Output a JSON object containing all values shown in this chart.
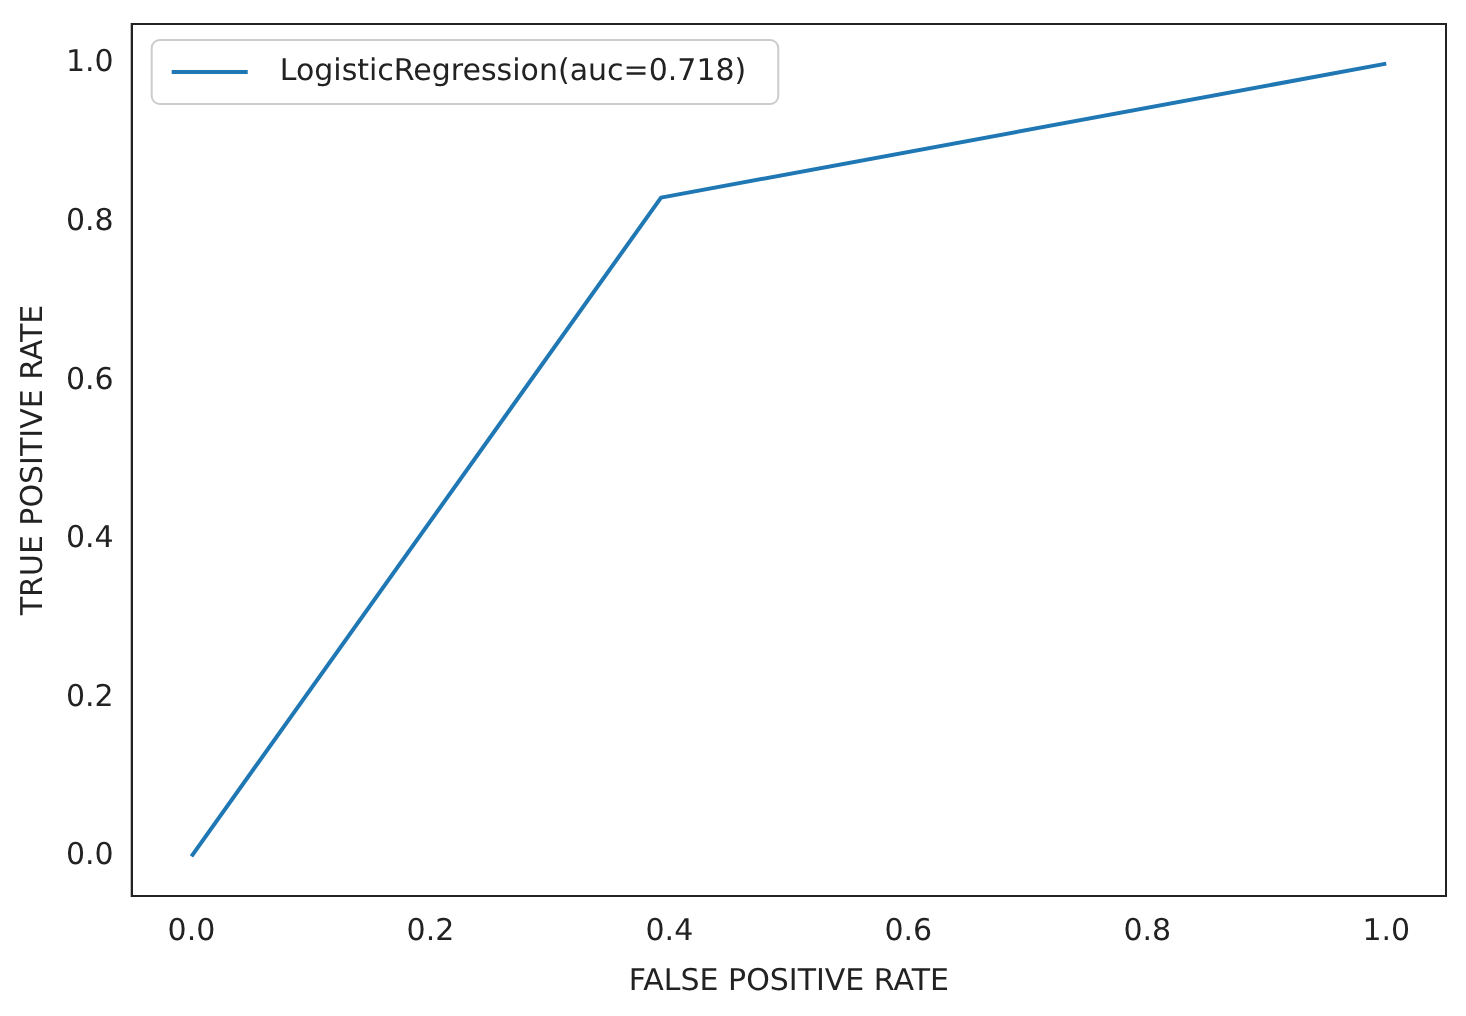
{
  "chart_data": {
    "type": "line",
    "xlabel": "FALSE POSITIVE RATE",
    "ylabel": "TRUE POSITIVE RATE",
    "x": [
      0,
      0.393,
      1
    ],
    "series": [
      {
        "name": "LogisticRegression(auc=0.718)",
        "color": "#1f77b4",
        "values": [
          0,
          0.831,
          1
        ]
      }
    ],
    "xlim": [
      -0.05,
      1.05
    ],
    "ylim": [
      -0.05,
      1.05
    ],
    "xticks": [
      {
        "value": 0,
        "label": "0.0"
      },
      {
        "value": 0.2,
        "label": "0.2"
      },
      {
        "value": 0.4,
        "label": "0.4"
      },
      {
        "value": 0.6,
        "label": "0.6"
      },
      {
        "value": 0.8,
        "label": "0.8"
      },
      {
        "value": 1,
        "label": "1.0"
      }
    ],
    "yticks": [
      {
        "value": 0,
        "label": "0.0"
      },
      {
        "value": 0.2,
        "label": "0.2"
      },
      {
        "value": 0.4,
        "label": "0.4"
      },
      {
        "value": 0.6,
        "label": "0.6"
      },
      {
        "value": 0.8,
        "label": "0.8"
      },
      {
        "value": 1,
        "label": "1.0"
      }
    ],
    "grid": false,
    "legend": "top left",
    "marker": "none",
    "line_style": "solid"
  }
}
